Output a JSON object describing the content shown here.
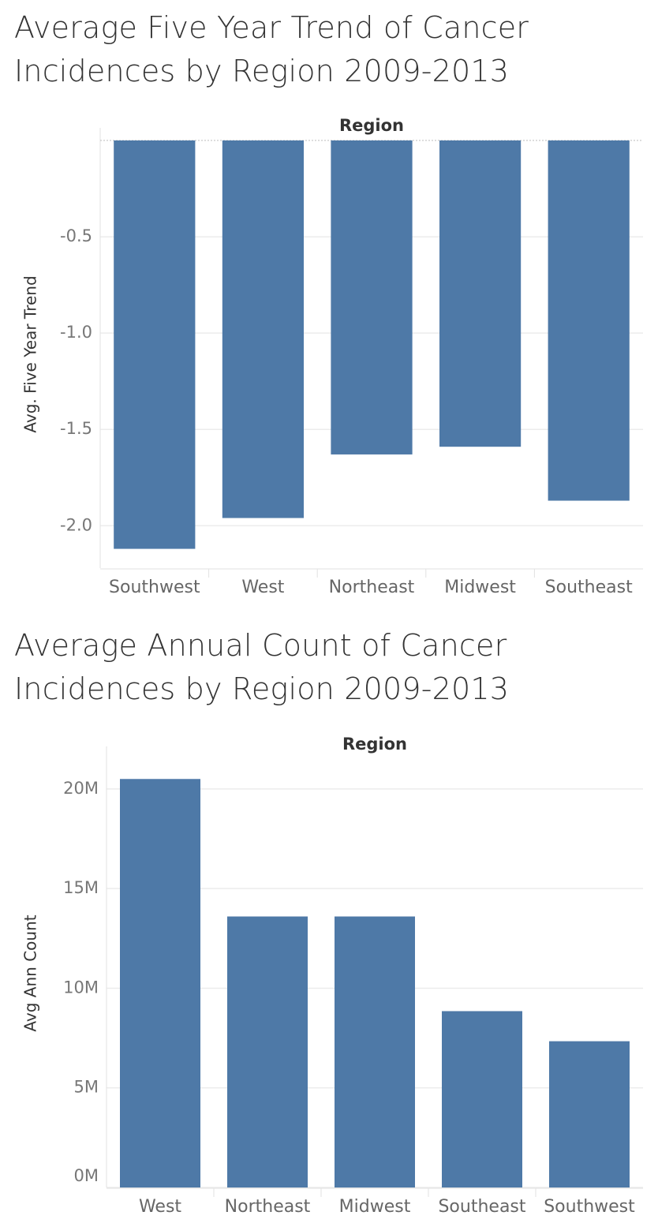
{
  "chart_data": [
    {
      "type": "bar",
      "title": "Average Five Year Trend of Cancer Incidences by Region 2009-2013",
      "x_label": "Region",
      "y_label": "Avg. Five Year Trend",
      "categories": [
        "Southwest",
        "West",
        "Northeast",
        "Midwest",
        "Southeast"
      ],
      "values": [
        -2.12,
        -1.96,
        -1.63,
        -1.59,
        -1.87
      ],
      "color": "#4e79a7",
      "ylim": [
        -2.22,
        0
      ],
      "yticks": [
        -0.5,
        {
          "value": -1,
          "label": "-1.0"
        },
        -1.5,
        {
          "value": -2,
          "label": "-2.0"
        }
      ],
      "grid": true
    },
    {
      "type": "bar",
      "title": "Average Annual Count of Cancer Incidences by Region 2009-2013",
      "x_label": "Region",
      "y_label": "Avg Ann Count",
      "categories": [
        "West",
        "Northeast",
        "Midwest",
        "Southeast",
        "Southwest"
      ],
      "values": [
        20500000,
        13600000,
        13600000,
        8850000,
        7340000
      ],
      "color": "#4e79a7",
      "ylim": [
        0,
        21500000
      ],
      "yticks": [
        {
          "value": 0,
          "label": "0M"
        },
        {
          "value": 5000000,
          "label": "5M"
        },
        {
          "value": 10000000,
          "label": "10M"
        },
        {
          "value": 15000000,
          "label": "15M"
        },
        {
          "value": 20000000,
          "label": "20M"
        }
      ],
      "grid": true
    }
  ]
}
